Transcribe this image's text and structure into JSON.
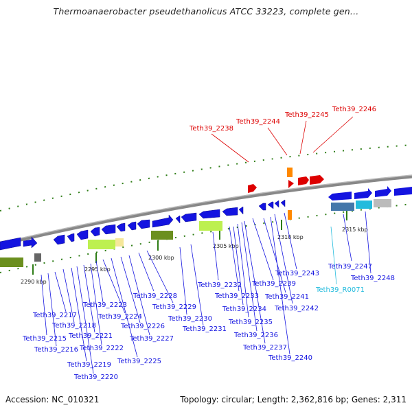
{
  "title": "Thermoanaerobacter pseudethanolicus ATCC 33223, complete gen...",
  "footer": {
    "accession": "Accession: NC_010321",
    "summary": "Topology: circular; Length: 2,362,816 bp; Genes: 2,311"
  },
  "colors": {
    "cds": "#1414e0",
    "rna": "#22bbdd",
    "highlight": "#dd0000",
    "tick": "#2e7d16"
  },
  "scale_ticks": [
    "2290 kbp",
    "2295 kbp",
    "2300 kbp",
    "2305 kbp",
    "2310 kbp",
    "2315 kbp"
  ],
  "labels_blue": [
    "Teth39_2215",
    "Teth39_2216",
    "Teth39_2217",
    "Teth39_2218",
    "Teth39_2219",
    "Teth39_2220",
    "Teth39_2221",
    "Teth39_2222",
    "Teth39_2223",
    "Teth39_2224",
    "Teth39_2225",
    "Teth39_2226",
    "Teth39_2227",
    "Teth39_2228",
    "Teth39_2229",
    "Teth39_2230",
    "Teth39_2231",
    "Teth39_2232",
    "Teth39_2233",
    "Teth39_2234",
    "Teth39_2235",
    "Teth39_2236",
    "Teth39_2237",
    "Teth39_2239",
    "Teth39_2240",
    "Teth39_2241",
    "Teth39_2242",
    "Teth39_2243",
    "Teth39_2247",
    "Teth39_2248"
  ],
  "labels_cyan": [
    "Teth39_R0071"
  ],
  "labels_red": [
    "Teth39_2238",
    "Teth39_2244",
    "Teth39_2245",
    "Teth39_2246"
  ]
}
